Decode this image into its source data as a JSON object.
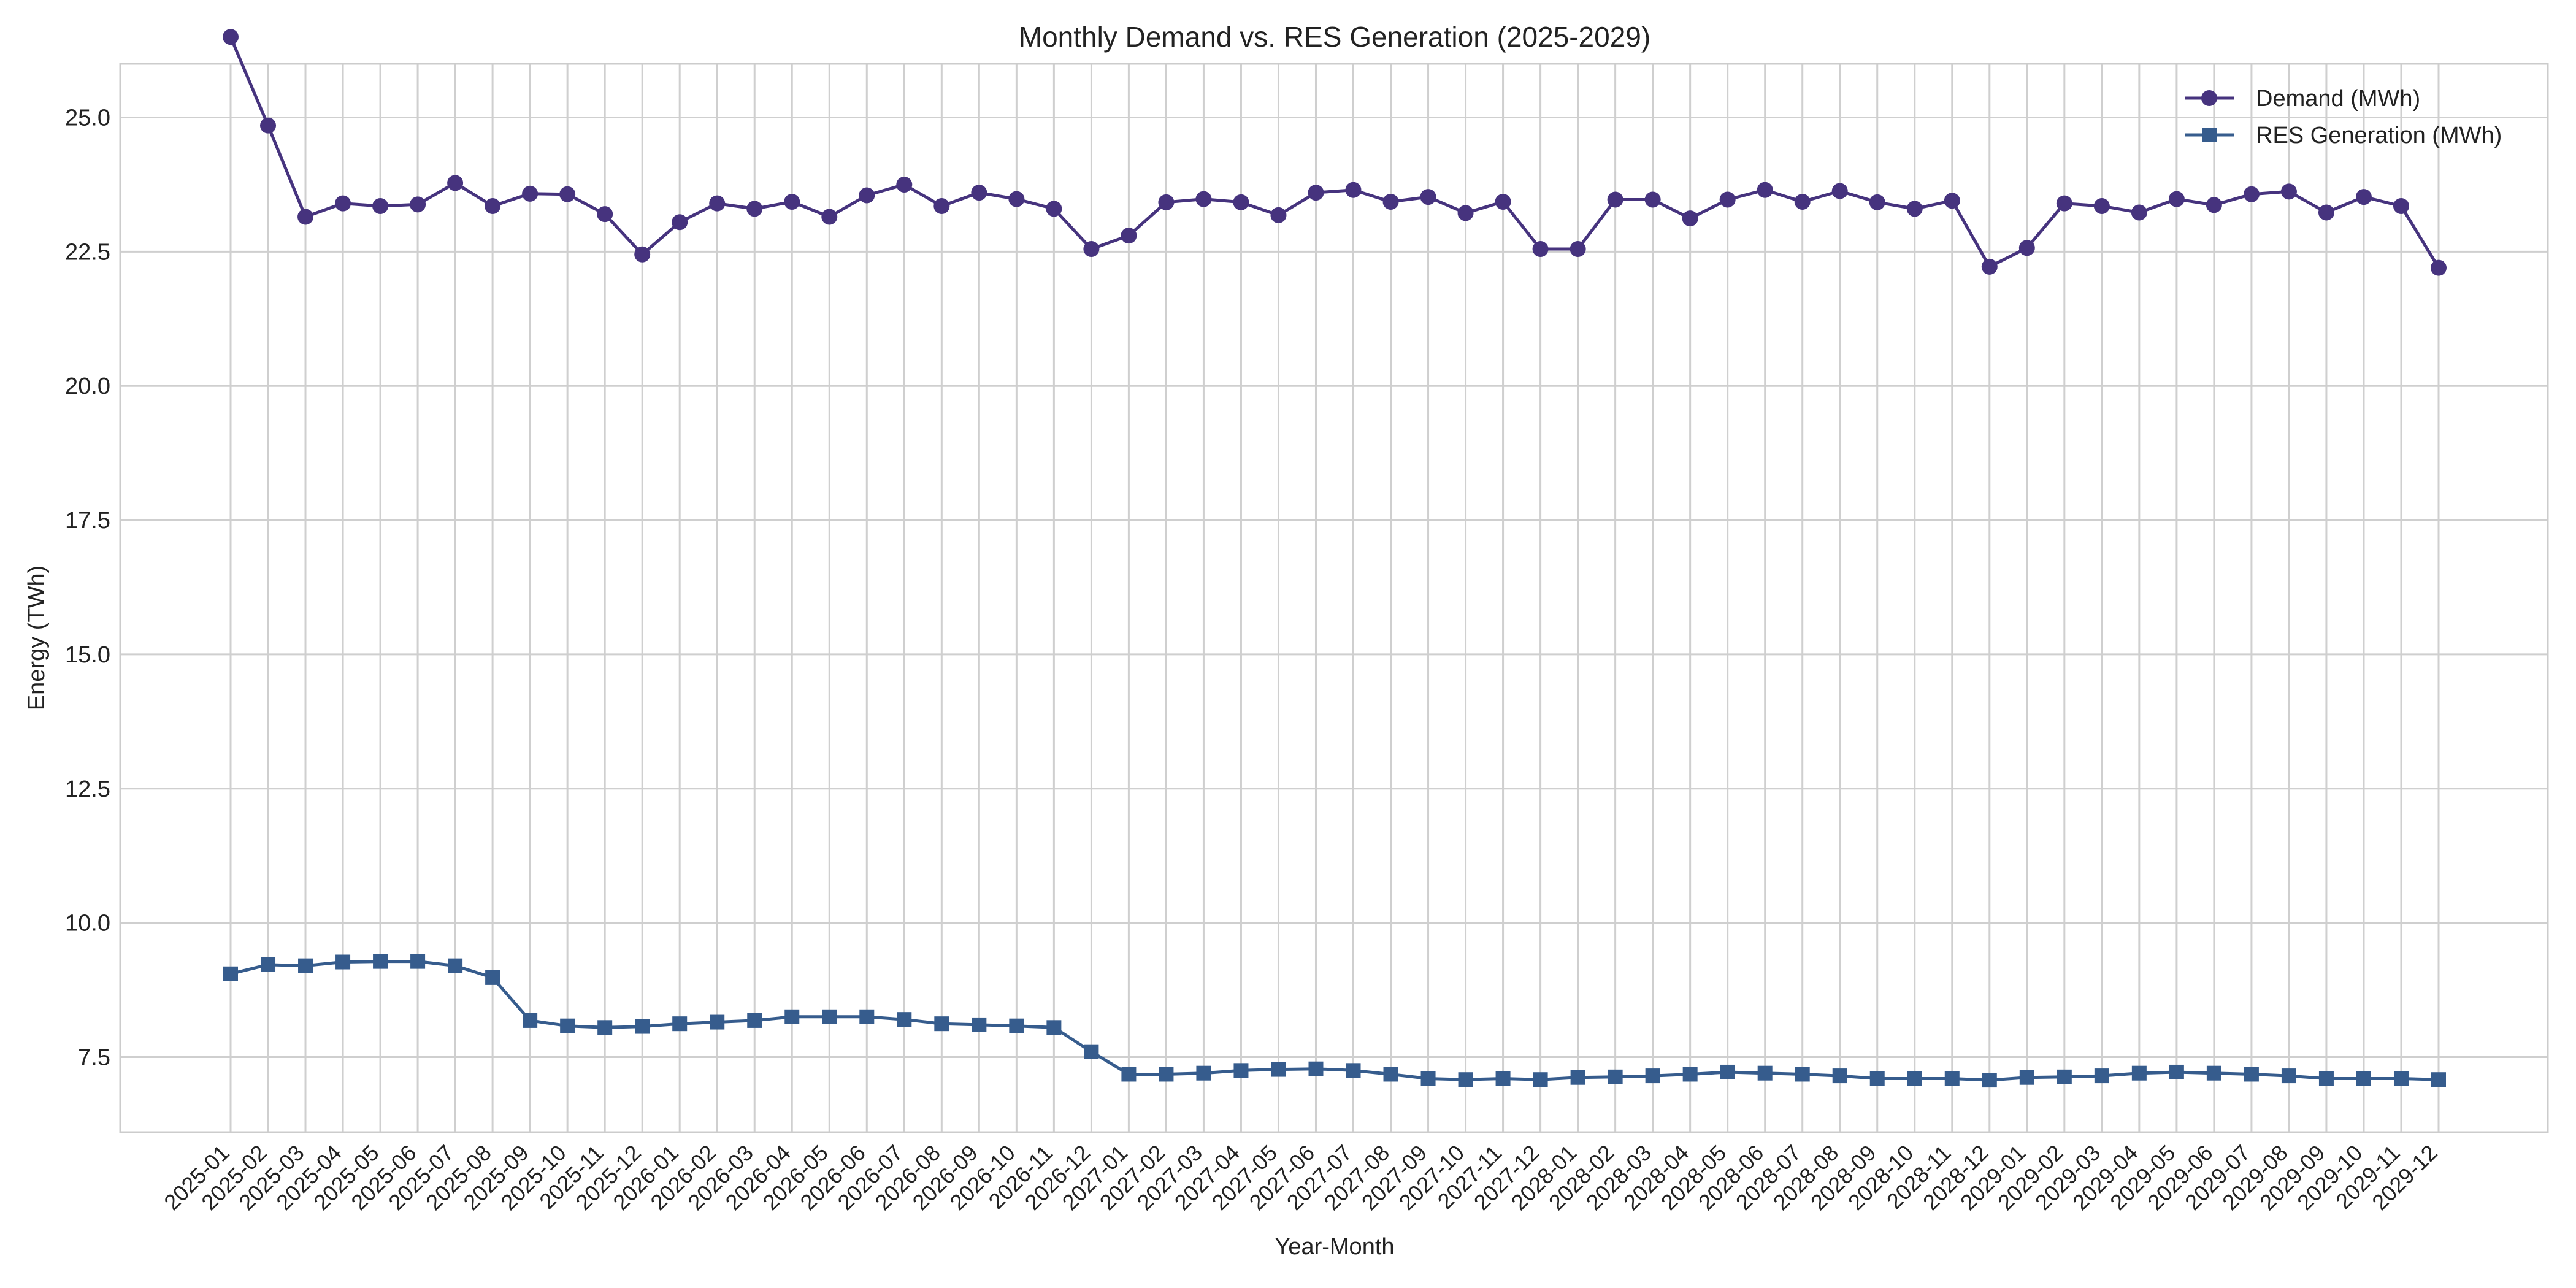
{
  "chart_data": {
    "type": "line",
    "title": "Monthly Demand vs. RES Generation (2025-2029)",
    "xlabel": "Year-Month",
    "ylabel": "Energy (TWh)",
    "ylim": [
      6.1,
      26.0
    ],
    "yticks": [
      "7.5",
      "10.0",
      "12.5",
      "15.0",
      "17.5",
      "20.0",
      "22.5",
      "25.0"
    ],
    "grid": true,
    "legend_position": "top-right",
    "categories": [
      "2025-01",
      "2025-02",
      "2025-03",
      "2025-04",
      "2025-05",
      "2025-06",
      "2025-07",
      "2025-08",
      "2025-09",
      "2025-10",
      "2025-11",
      "2025-12",
      "2026-01",
      "2026-02",
      "2026-03",
      "2026-04",
      "2026-05",
      "2026-06",
      "2026-07",
      "2026-08",
      "2026-09",
      "2026-10",
      "2026-11",
      "2026-12",
      "2027-01",
      "2027-02",
      "2027-03",
      "2027-04",
      "2027-05",
      "2027-06",
      "2027-07",
      "2027-08",
      "2027-09",
      "2027-10",
      "2027-11",
      "2027-12",
      "2028-01",
      "2028-02",
      "2028-03",
      "2028-04",
      "2028-05",
      "2028-06",
      "2028-07",
      "2028-08",
      "2028-09",
      "2028-10",
      "2028-11",
      "2028-12",
      "2029-01",
      "2029-02",
      "2029-03",
      "2029-04",
      "2029-05",
      "2029-06",
      "2029-07",
      "2029-08",
      "2029-09",
      "2029-10",
      "2029-11",
      "2029-12"
    ],
    "series": [
      {
        "name": "Demand (MWh)",
        "color": "#46337e",
        "marker": "circle",
        "values": [
          26.5,
          24.85,
          23.15,
          23.4,
          23.35,
          23.38,
          23.78,
          23.35,
          23.58,
          23.57,
          23.2,
          22.45,
          23.05,
          23.4,
          23.3,
          23.43,
          23.15,
          23.55,
          23.75,
          23.35,
          23.6,
          23.48,
          23.3,
          22.55,
          22.8,
          23.42,
          23.48,
          23.42,
          23.18,
          23.6,
          23.65,
          23.43,
          23.52,
          23.22,
          23.43,
          22.55,
          22.55,
          23.47,
          23.47,
          23.12,
          23.47,
          23.65,
          23.43,
          23.63,
          23.42,
          23.3,
          23.45,
          22.22,
          22.57,
          23.4,
          23.35,
          23.23,
          23.48,
          23.37,
          23.57,
          23.62,
          23.23,
          23.52,
          23.35,
          22.2
        ]
      },
      {
        "name": "RES Generation (MWh)",
        "color": "#365c8d",
        "marker": "square",
        "values": [
          9.05,
          9.22,
          9.2,
          9.27,
          9.28,
          9.28,
          9.2,
          8.98,
          8.18,
          8.08,
          8.05,
          8.07,
          8.12,
          8.15,
          8.18,
          8.25,
          8.25,
          8.25,
          8.2,
          8.12,
          8.1,
          8.08,
          8.05,
          7.6,
          7.18,
          7.18,
          7.2,
          7.25,
          7.27,
          7.28,
          7.25,
          7.18,
          7.1,
          7.08,
          7.1,
          7.08,
          7.12,
          7.13,
          7.15,
          7.18,
          7.22,
          7.2,
          7.18,
          7.15,
          7.1,
          7.1,
          7.1,
          7.07,
          7.12,
          7.13,
          7.15,
          7.2,
          7.22,
          7.2,
          7.18,
          7.15,
          7.1,
          7.1,
          7.1,
          7.08
        ]
      }
    ]
  }
}
